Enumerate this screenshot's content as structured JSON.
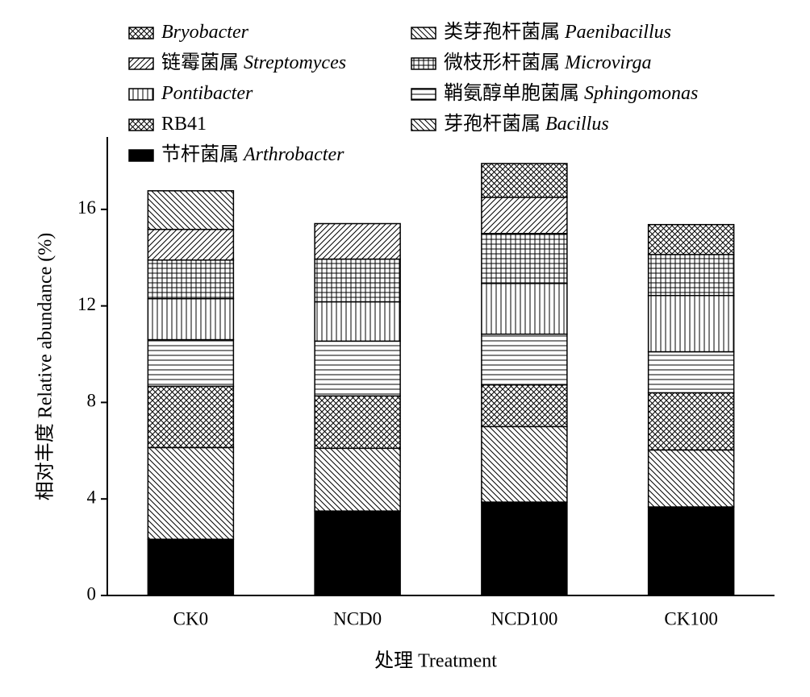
{
  "chart_data": {
    "type": "stacked_bar",
    "x_label": "处理 Treatment",
    "y_label": "相对丰度 Relative abundance (%)",
    "categories": [
      "CK0",
      "NCD0",
      "NCD100",
      "CK100"
    ],
    "ylim": [
      0,
      19
    ],
    "yticks": [
      0,
      4,
      8,
      12,
      16
    ],
    "series": [
      {
        "name": "节杆菌属 Arthrobacter",
        "pattern": "solid",
        "values": [
          2.33,
          3.5,
          3.87,
          3.67
        ]
      },
      {
        "name": "芽孢杆菌属 Bacillus",
        "pattern": "backslash",
        "values": [
          3.8,
          2.6,
          3.13,
          2.36
        ]
      },
      {
        "name": "RB41",
        "pattern": "cross",
        "values": [
          2.54,
          2.17,
          1.73,
          2.37
        ]
      },
      {
        "name": "鞘氨醇单胞菌属 Sphingomonas",
        "pattern": "hlines",
        "values": [
          1.93,
          2.27,
          2.1,
          1.7
        ]
      },
      {
        "name": "Pontibacter",
        "pattern": "vlines",
        "values": [
          1.7,
          1.63,
          2.1,
          2.33
        ]
      },
      {
        "name": "微枝形杆菌属 Microvirga",
        "pattern": "grid",
        "values": [
          1.6,
          1.77,
          2.07,
          1.7
        ]
      },
      {
        "name": "链霉菌属 Streptomyces",
        "pattern": "slash",
        "values": [
          1.27,
          1.47,
          1.5,
          0
        ]
      },
      {
        "name": "类芽孢杆菌属 Paenibacillus",
        "pattern": "backslash",
        "values": [
          1.6,
          0,
          0,
          0
        ]
      },
      {
        "name": "Bryobacter",
        "pattern": "cross",
        "values": [
          0,
          0,
          1.4,
          1.24
        ]
      }
    ]
  }
}
